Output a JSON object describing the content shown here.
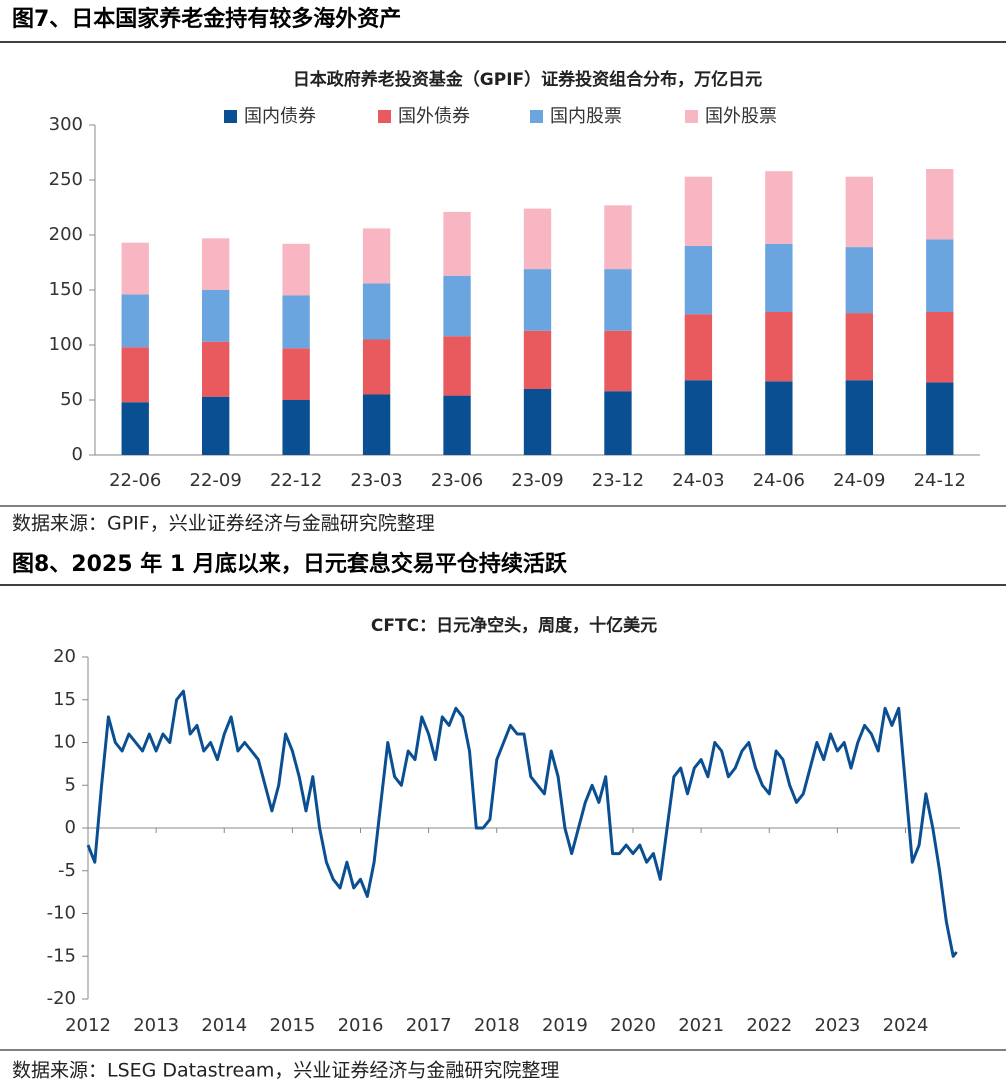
{
  "captions": [
    "图7、日本国家养老金持有较多海外资产",
    "图8、2025 年 1 月底以来，日元套息交易平仓持续活跃"
  ],
  "sources": [
    "数据来源：GPIF，兴业证券经济与金融研究院整理",
    "数据来源：LSEG Datastream，兴业证券经济与金融研究院整理"
  ],
  "chart_data": [
    {
      "type": "bar",
      "stacked": true,
      "legend": "top",
      "title": "日本政府养老投资基金（GPIF）证券投资组合分布，万亿日元",
      "categories": [
        "22-06",
        "22-09",
        "22-12",
        "23-03",
        "23-06",
        "23-09",
        "23-12",
        "24-03",
        "24-06",
        "24-09",
        "24-12"
      ],
      "series": [
        {
          "name": "国内债券",
          "color": "#0b4f93",
          "values": [
            48,
            53,
            50,
            55,
            54,
            60,
            58,
            68,
            67,
            68,
            66
          ]
        },
        {
          "name": "国外债券",
          "color": "#e85a5e",
          "values": [
            50,
            50,
            47,
            50,
            54,
            53,
            55,
            60,
            63,
            61,
            64
          ]
        },
        {
          "name": "国内股票",
          "color": "#6aa5e0",
          "values": [
            48,
            47,
            48,
            51,
            55,
            56,
            56,
            62,
            62,
            60,
            66
          ]
        },
        {
          "name": "国外股票",
          "color": "#f8b6c3",
          "values": [
            47,
            47,
            47,
            50,
            58,
            55,
            58,
            63,
            66,
            64,
            64
          ]
        }
      ],
      "ylim": [
        0,
        300
      ],
      "yticks": [
        0,
        50,
        100,
        150,
        200,
        250,
        300
      ]
    },
    {
      "type": "line",
      "title": "CFTC：日元净空头，周度，十亿美元",
      "color": "#0b4f93",
      "x": [
        2012,
        2012.1,
        2012.2,
        2012.3,
        2012.4,
        2012.5,
        2012.6,
        2012.7,
        2012.8,
        2012.9,
        2013,
        2013.1,
        2013.2,
        2013.3,
        2013.4,
        2013.5,
        2013.6,
        2013.7,
        2013.8,
        2013.9,
        2014,
        2014.1,
        2014.2,
        2014.3,
        2014.4,
        2014.5,
        2014.6,
        2014.7,
        2014.8,
        2014.9,
        2015,
        2015.1,
        2015.2,
        2015.3,
        2015.4,
        2015.5,
        2015.6,
        2015.7,
        2015.8,
        2015.9,
        2016,
        2016.1,
        2016.2,
        2016.3,
        2016.4,
        2016.5,
        2016.6,
        2016.7,
        2016.8,
        2016.9,
        2017,
        2017.1,
        2017.2,
        2017.3,
        2017.4,
        2017.5,
        2017.6,
        2017.7,
        2017.8,
        2017.9,
        2018,
        2018.1,
        2018.2,
        2018.3,
        2018.4,
        2018.5,
        2018.6,
        2018.7,
        2018.8,
        2018.9,
        2019,
        2019.1,
        2019.2,
        2019.3,
        2019.4,
        2019.5,
        2019.6,
        2019.7,
        2019.8,
        2019.9,
        2020,
        2020.1,
        2020.2,
        2020.3,
        2020.4,
        2020.5,
        2020.6,
        2020.7,
        2020.8,
        2020.9,
        2021,
        2021.1,
        2021.2,
        2021.3,
        2021.4,
        2021.5,
        2021.6,
        2021.7,
        2021.8,
        2021.9,
        2022,
        2022.1,
        2022.2,
        2022.3,
        2022.4,
        2022.5,
        2022.6,
        2022.7,
        2022.8,
        2022.9,
        2023,
        2023.1,
        2023.2,
        2023.3,
        2023.4,
        2023.5,
        2023.6,
        2023.7,
        2023.8,
        2023.9,
        2024,
        2024.1,
        2024.2,
        2024.3,
        2024.4,
        2024.5,
        2024.6,
        2024.7,
        2024.75
      ],
      "values": [
        -2,
        -4,
        5,
        13,
        10,
        9,
        11,
        10,
        9,
        11,
        9,
        11,
        10,
        15,
        16,
        11,
        12,
        9,
        10,
        8,
        11,
        13,
        9,
        10,
        9,
        8,
        5,
        2,
        5,
        11,
        9,
        6,
        2,
        6,
        0,
        -4,
        -6,
        -7,
        -4,
        -7,
        -6,
        -8,
        -4,
        3,
        10,
        6,
        5,
        9,
        8,
        13,
        11,
        8,
        13,
        12,
        14,
        13,
        9,
        0,
        0,
        1,
        8,
        10,
        12,
        11,
        11,
        6,
        5,
        4,
        9,
        6,
        0,
        -3,
        0,
        3,
        5,
        3,
        6,
        -3,
        -3,
        -2,
        -3,
        -2,
        -4,
        -3,
        -6,
        0,
        6,
        7,
        4,
        7,
        8,
        6,
        10,
        9,
        6,
        7,
        9,
        10,
        7,
        5,
        4,
        9,
        8,
        5,
        3,
        4,
        7,
        10,
        8,
        11,
        9,
        10,
        7,
        10,
        12,
        11,
        9,
        14,
        12,
        14,
        5,
        -4,
        -2,
        4,
        0,
        -5,
        -11,
        -15,
        -14.5
      ],
      "xlim": [
        2012,
        2024.8
      ],
      "xticks": [
        2012,
        2013,
        2014,
        2015,
        2016,
        2017,
        2018,
        2019,
        2020,
        2021,
        2022,
        2023,
        2024
      ],
      "ylim": [
        -20,
        20
      ],
      "yticks": [
        -20,
        -15,
        -10,
        -5,
        0,
        5,
        10,
        15,
        20
      ]
    }
  ]
}
